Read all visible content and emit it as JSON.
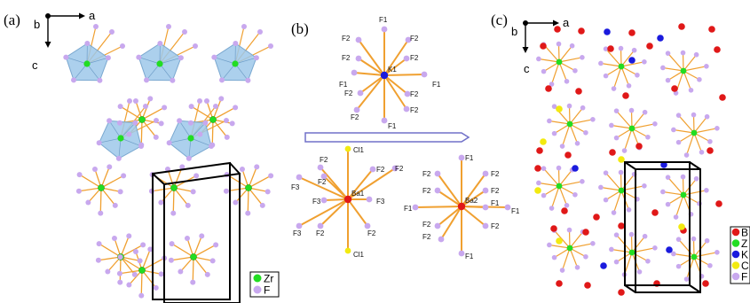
{
  "panel_labels": {
    "a": "(a)",
    "b": "(b)",
    "c": "(c)"
  },
  "axes_a": {
    "out": "b",
    "right": "a",
    "down": "c"
  },
  "axes_c": {
    "out": "b",
    "right": "a",
    "down": "c"
  },
  "clusters": {
    "k1": {
      "center": "K1",
      "labels": [
        "F1",
        "F2",
        "F2",
        "F2",
        "F2",
        "F1",
        "F1",
        "F2",
        "F2",
        "F2",
        "F2",
        "F1"
      ]
    },
    "ba1": {
      "center": "Ba1",
      "labels": [
        "Cl1",
        "F2",
        "F2",
        "F2",
        "F3",
        "F3",
        "F3",
        "F2",
        "F2",
        "F3",
        "F2",
        "Cl1"
      ]
    },
    "ba2": {
      "center": "Ba2",
      "labels": [
        "F1",
        "F2",
        "F2",
        "F2",
        "F1",
        "F2",
        "F2",
        "F1",
        "F2",
        "F2",
        "F1",
        "F1"
      ]
    }
  },
  "legend_a": [
    {
      "label": "Zr",
      "color": "#22dd22"
    },
    {
      "label": "F",
      "color": "#c8a8ee"
    }
  ],
  "legend_c": [
    {
      "label": "B",
      "color": "#e01818"
    },
    {
      "label": "Z",
      "color": "#22dd22"
    },
    {
      "label": "K",
      "color": "#1a1add"
    },
    {
      "label": "C",
      "color": "#f2ea10"
    },
    {
      "label": "F",
      "color": "#c8a8ee"
    }
  ],
  "colors": {
    "bond": "#f0a030",
    "fluorine": "#c8a8ee",
    "zirconium": "#22dd22",
    "polyhedron": "#9ec8ea",
    "barium": "#e01818",
    "potassium": "#1a1add",
    "chlorine": "#f2ea10",
    "cell": "#000000",
    "arrow": "#7070c8"
  }
}
